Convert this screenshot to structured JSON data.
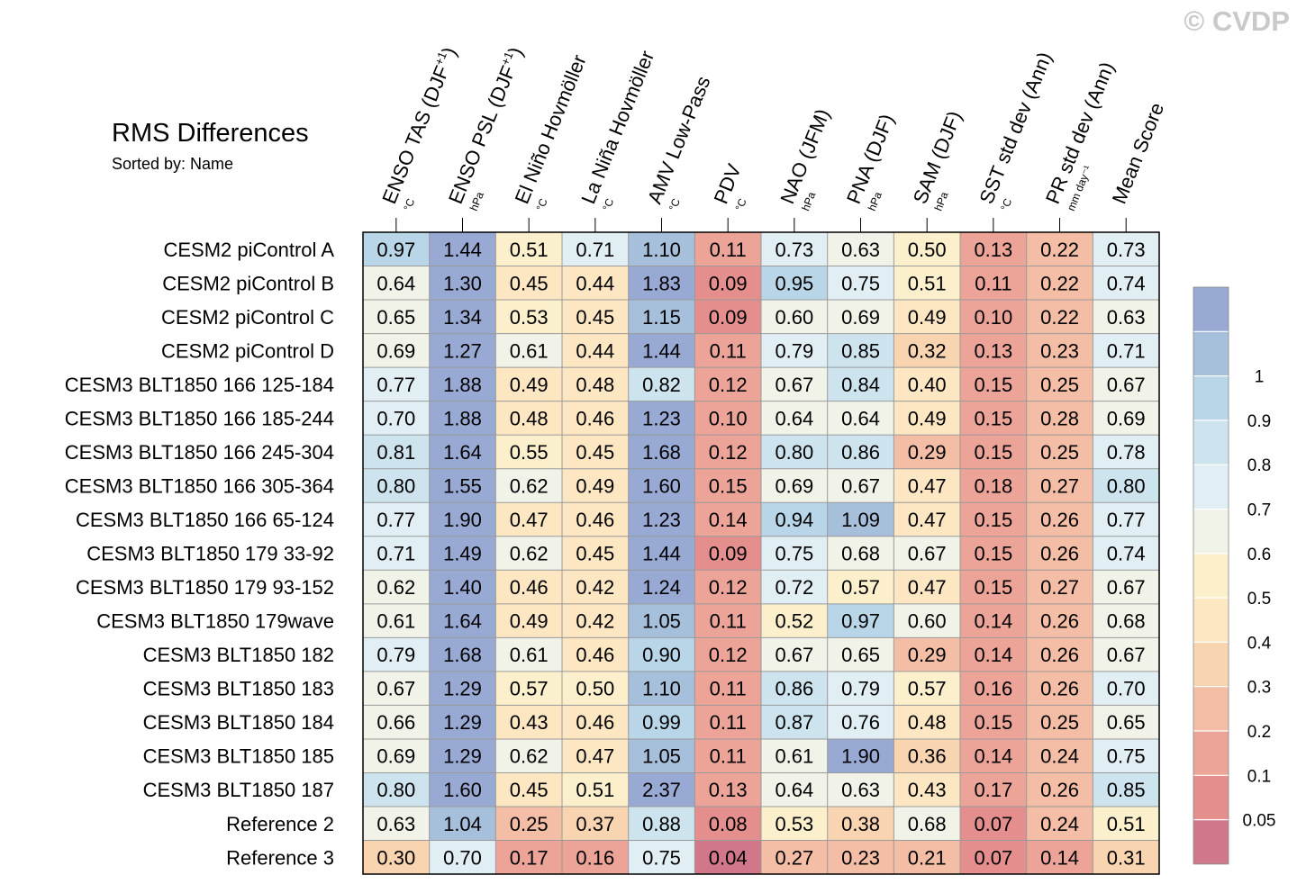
{
  "watermark": "© CVDP",
  "chart_data": {
    "type": "heatmap",
    "title": "RMS Differences",
    "subtitle": "Sorted by: Name",
    "columns": [
      {
        "label": "ENSO TAS (DJF",
        "sup": "+1",
        "close": ")",
        "unit": "°C"
      },
      {
        "label": "ENSO PSL (DJF",
        "sup": "+1",
        "close": ")",
        "unit": "hPa"
      },
      {
        "label": "El Niño Hovmöller",
        "sup": "",
        "close": "",
        "unit": "°C"
      },
      {
        "label": "La Niña Hovmöller",
        "sup": "",
        "close": "",
        "unit": "°C"
      },
      {
        "label": "AMV Low-Pass",
        "sup": "",
        "close": "",
        "unit": "°C"
      },
      {
        "label": "PDV",
        "sup": "",
        "close": "",
        "unit": "°C"
      },
      {
        "label": "NAO (JFM)",
        "sup": "",
        "close": "",
        "unit": "hPa"
      },
      {
        "label": "PNA (DJF)",
        "sup": "",
        "close": "",
        "unit": "hPa"
      },
      {
        "label": "SAM (DJF)",
        "sup": "",
        "close": "",
        "unit": "hPa"
      },
      {
        "label": "SST std dev (Ann)",
        "sup": "",
        "close": "",
        "unit": "°C"
      },
      {
        "label": "PR std dev (Ann)",
        "sup": "",
        "close": "",
        "unit": "mm day⁻¹"
      },
      {
        "label": "Mean Score",
        "sup": "",
        "close": "",
        "unit": ""
      }
    ],
    "rows": [
      "CESM2 piControl A",
      "CESM2 piControl B",
      "CESM2 piControl C",
      "CESM2 piControl D",
      "CESM3 BLT1850 166 125-184",
      "CESM3 BLT1850 166 185-244",
      "CESM3 BLT1850 166 245-304",
      "CESM3 BLT1850 166 305-364",
      "CESM3 BLT1850 166 65-124",
      "CESM3 BLT1850 179 33-92",
      "CESM3 BLT1850 179 93-152",
      "CESM3 BLT1850 179wave",
      "CESM3 BLT1850 182",
      "CESM3 BLT1850 183",
      "CESM3 BLT1850 184",
      "CESM3 BLT1850 185",
      "CESM3 BLT1850 187",
      "Reference 2",
      "Reference 3"
    ],
    "values": [
      [
        "0.97",
        "1.44",
        "0.51",
        "0.71",
        "1.10",
        "0.11",
        "0.73",
        "0.63",
        "0.50",
        "0.13",
        "0.22",
        "0.73"
      ],
      [
        "0.64",
        "1.30",
        "0.45",
        "0.44",
        "1.83",
        "0.09",
        "0.95",
        "0.75",
        "0.51",
        "0.11",
        "0.22",
        "0.74"
      ],
      [
        "0.65",
        "1.34",
        "0.53",
        "0.45",
        "1.15",
        "0.09",
        "0.60",
        "0.69",
        "0.49",
        "0.10",
        "0.22",
        "0.63"
      ],
      [
        "0.69",
        "1.27",
        "0.61",
        "0.44",
        "1.44",
        "0.11",
        "0.79",
        "0.85",
        "0.32",
        "0.13",
        "0.23",
        "0.71"
      ],
      [
        "0.77",
        "1.88",
        "0.49",
        "0.48",
        "0.82",
        "0.12",
        "0.67",
        "0.84",
        "0.40",
        "0.15",
        "0.25",
        "0.67"
      ],
      [
        "0.70",
        "1.88",
        "0.48",
        "0.46",
        "1.23",
        "0.10",
        "0.64",
        "0.64",
        "0.49",
        "0.15",
        "0.28",
        "0.69"
      ],
      [
        "0.81",
        "1.64",
        "0.55",
        "0.45",
        "1.68",
        "0.12",
        "0.80",
        "0.86",
        "0.29",
        "0.15",
        "0.25",
        "0.78"
      ],
      [
        "0.80",
        "1.55",
        "0.62",
        "0.49",
        "1.60",
        "0.15",
        "0.69",
        "0.67",
        "0.47",
        "0.18",
        "0.27",
        "0.80"
      ],
      [
        "0.77",
        "1.90",
        "0.47",
        "0.46",
        "1.23",
        "0.14",
        "0.94",
        "1.09",
        "0.47",
        "0.15",
        "0.26",
        "0.77"
      ],
      [
        "0.71",
        "1.49",
        "0.62",
        "0.45",
        "1.44",
        "0.09",
        "0.75",
        "0.68",
        "0.67",
        "0.15",
        "0.26",
        "0.74"
      ],
      [
        "0.62",
        "1.40",
        "0.46",
        "0.42",
        "1.24",
        "0.12",
        "0.72",
        "0.57",
        "0.47",
        "0.15",
        "0.27",
        "0.67"
      ],
      [
        "0.61",
        "1.64",
        "0.49",
        "0.42",
        "1.05",
        "0.11",
        "0.52",
        "0.97",
        "0.60",
        "0.14",
        "0.26",
        "0.68"
      ],
      [
        "0.79",
        "1.68",
        "0.61",
        "0.46",
        "0.90",
        "0.12",
        "0.67",
        "0.65",
        "0.29",
        "0.14",
        "0.26",
        "0.67"
      ],
      [
        "0.67",
        "1.29",
        "0.57",
        "0.50",
        "1.10",
        "0.11",
        "0.86",
        "0.79",
        "0.57",
        "0.16",
        "0.26",
        "0.70"
      ],
      [
        "0.66",
        "1.29",
        "0.43",
        "0.46",
        "0.99",
        "0.11",
        "0.87",
        "0.76",
        "0.48",
        "0.15",
        "0.25",
        "0.65"
      ],
      [
        "0.69",
        "1.29",
        "0.62",
        "0.47",
        "1.05",
        "0.11",
        "0.61",
        "1.90",
        "0.36",
        "0.14",
        "0.24",
        "0.75"
      ],
      [
        "0.80",
        "1.60",
        "0.45",
        "0.51",
        "2.37",
        "0.13",
        "0.64",
        "0.63",
        "0.43",
        "0.17",
        "0.26",
        "0.85"
      ],
      [
        "0.63",
        "1.04",
        "0.25",
        "0.37",
        "0.88",
        "0.08",
        "0.53",
        "0.38",
        "0.68",
        "0.07",
        "0.24",
        "0.51"
      ],
      [
        "0.30",
        "0.70",
        "0.17",
        "0.16",
        "0.75",
        "0.04",
        "0.27",
        "0.23",
        "0.21",
        "0.07",
        "0.14",
        "0.31"
      ]
    ],
    "colorbar": {
      "thresholds": [
        0.05,
        0.1,
        0.2,
        0.3,
        0.4,
        0.5,
        0.6,
        0.7,
        0.8,
        0.9,
        1
      ],
      "tick_labels": [
        "0.05",
        "0.1",
        "0.2",
        "0.3",
        "0.4",
        "0.5",
        "0.6",
        "0.7",
        "0.8",
        "0.9",
        "1"
      ],
      "colors": [
        "#d0778a",
        "#e48f8e",
        "#eba497",
        "#f3bea5",
        "#f8d4b0",
        "#fde6c2",
        "#fbefcc",
        "#f1f3e9",
        "#e1eff4",
        "#cde4ef",
        "#b8d6e8",
        "#a6bfdb",
        "#98a9d3"
      ]
    }
  }
}
